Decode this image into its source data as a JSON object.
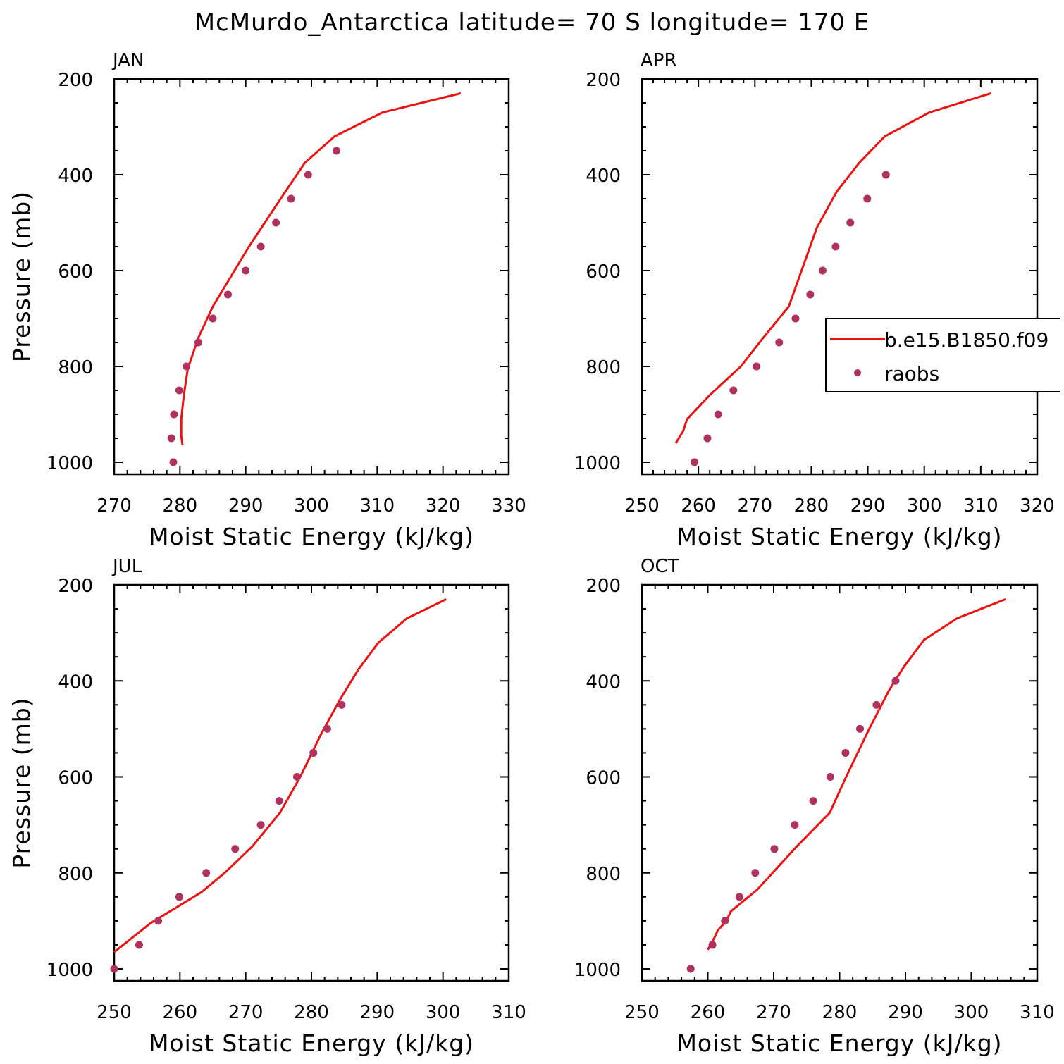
{
  "title": "McMurdo_Antarctica  latitude= 70 S longitude= 170 E",
  "legend": {
    "model_label": "b.e15.B1850.f09",
    "obs_label": "raobs",
    "placement": "right, inside APR panel (clipped)"
  },
  "colors": {
    "model": "#ee1111",
    "obs": "#b0305f",
    "axis": "#000000"
  },
  "chart_data": [
    {
      "type": "line",
      "panel": "JAN",
      "title": "JAN",
      "xlabel": "Moist Static Energy (kJ/kg)",
      "ylabel": "Pressure (mb)",
      "xlim": [
        270,
        330
      ],
      "ylim": [
        1025,
        200
      ],
      "xticks": [
        270,
        280,
        290,
        300,
        310,
        320,
        330
      ],
      "yticks": [
        200,
        400,
        600,
        800,
        1000
      ],
      "series": [
        {
          "name": "b.e15.B1850.f09",
          "kind": "line",
          "x": [
            322.7,
            310.8,
            303.5,
            299.0,
            295.8,
            290.5,
            285.0,
            282.8,
            281.2,
            280.6,
            280.2,
            280.2,
            280.4
          ],
          "y": [
            230,
            270,
            320,
            375,
            440,
            550,
            675,
            740,
            805,
            860,
            910,
            945,
            965
          ]
        },
        {
          "name": "raobs",
          "kind": "scatter",
          "x": [
            303.8,
            299.5,
            296.9,
            294.6,
            292.3,
            290.0,
            287.3,
            285.0,
            282.8,
            281.0,
            279.9,
            279.1,
            278.7,
            279.0
          ],
          "y": [
            350,
            400,
            450,
            500,
            550,
            600,
            650,
            700,
            750,
            800,
            850,
            900,
            950,
            1000
          ]
        }
      ]
    },
    {
      "type": "line",
      "panel": "APR",
      "title": "APR",
      "xlabel": "Moist Static Energy (kJ/kg)",
      "ylabel": "",
      "xlim": [
        250,
        320
      ],
      "ylim": [
        1025,
        200
      ],
      "xticks": [
        250,
        260,
        270,
        280,
        290,
        300,
        310,
        320
      ],
      "yticks": [
        200,
        400,
        600,
        800,
        1000
      ],
      "series": [
        {
          "name": "b.e15.B1850.f09",
          "kind": "line",
          "x": [
            311.8,
            300.9,
            293.0,
            288.5,
            284.5,
            281.0,
            276.0,
            271.5,
            267.5,
            262.0,
            258.0,
            257.3,
            256.0
          ],
          "y": [
            230,
            270,
            320,
            375,
            435,
            510,
            675,
            740,
            800,
            860,
            910,
            935,
            960
          ]
        },
        {
          "name": "raobs",
          "kind": "scatter",
          "x": [
            293.2,
            289.9,
            286.9,
            284.3,
            282.0,
            279.8,
            277.2,
            274.3,
            270.3,
            266.2,
            263.5,
            261.6,
            259.3
          ],
          "y": [
            400,
            450,
            500,
            550,
            600,
            650,
            700,
            750,
            800,
            850,
            900,
            950,
            1000
          ]
        }
      ]
    },
    {
      "type": "line",
      "panel": "JUL",
      "title": "JUL",
      "xlabel": "Moist Static Energy (kJ/kg)",
      "ylabel": "Pressure (mb)",
      "xlim": [
        250,
        310
      ],
      "ylim": [
        1025,
        200
      ],
      "xticks": [
        250,
        260,
        270,
        280,
        290,
        300,
        310
      ],
      "yticks": [
        200,
        400,
        600,
        800,
        1000
      ],
      "series": [
        {
          "name": "b.e15.B1850.f09",
          "kind": "line",
          "x": [
            300.5,
            294.5,
            290.2,
            287.2,
            284.3,
            281.5,
            278.3,
            275.2,
            271.0,
            266.8,
            263.3,
            258.5,
            255.5,
            250.0
          ],
          "y": [
            230,
            270,
            320,
            375,
            440,
            510,
            600,
            675,
            745,
            800,
            840,
            880,
            905,
            965
          ]
        },
        {
          "name": "raobs",
          "kind": "scatter",
          "x": [
            284.6,
            282.4,
            280.3,
            277.8,
            275.1,
            272.3,
            268.4,
            264.0,
            259.9,
            256.7,
            253.8,
            250.0
          ],
          "y": [
            450,
            500,
            550,
            600,
            650,
            700,
            750,
            800,
            850,
            900,
            950,
            1000
          ]
        }
      ]
    },
    {
      "type": "line",
      "panel": "OCT",
      "title": "OCT",
      "xlabel": "Moist Static Energy (kJ/kg)",
      "ylabel": "",
      "xlim": [
        250,
        310
      ],
      "ylim": [
        1025,
        200
      ],
      "xticks": [
        250,
        260,
        270,
        280,
        290,
        300,
        310
      ],
      "yticks": [
        200,
        400,
        600,
        800,
        1000
      ],
      "series": [
        {
          "name": "b.e15.B1850.f09",
          "kind": "line",
          "x": [
            305.2,
            297.8,
            292.8,
            289.8,
            287.5,
            284.5,
            281.0,
            278.5,
            273.5,
            267.5,
            263.5,
            262.8,
            261.5,
            261.0,
            260.0
          ],
          "y": [
            230,
            270,
            315,
            370,
            420,
            500,
            600,
            675,
            745,
            835,
            880,
            900,
            920,
            935,
            960
          ]
        },
        {
          "name": "raobs",
          "kind": "scatter",
          "x": [
            288.5,
            285.6,
            283.1,
            280.9,
            278.6,
            276.0,
            273.2,
            270.1,
            267.2,
            264.8,
            262.6,
            260.7,
            257.4
          ],
          "y": [
            400,
            450,
            500,
            550,
            600,
            650,
            700,
            750,
            800,
            850,
            900,
            950,
            1000
          ]
        }
      ]
    }
  ]
}
